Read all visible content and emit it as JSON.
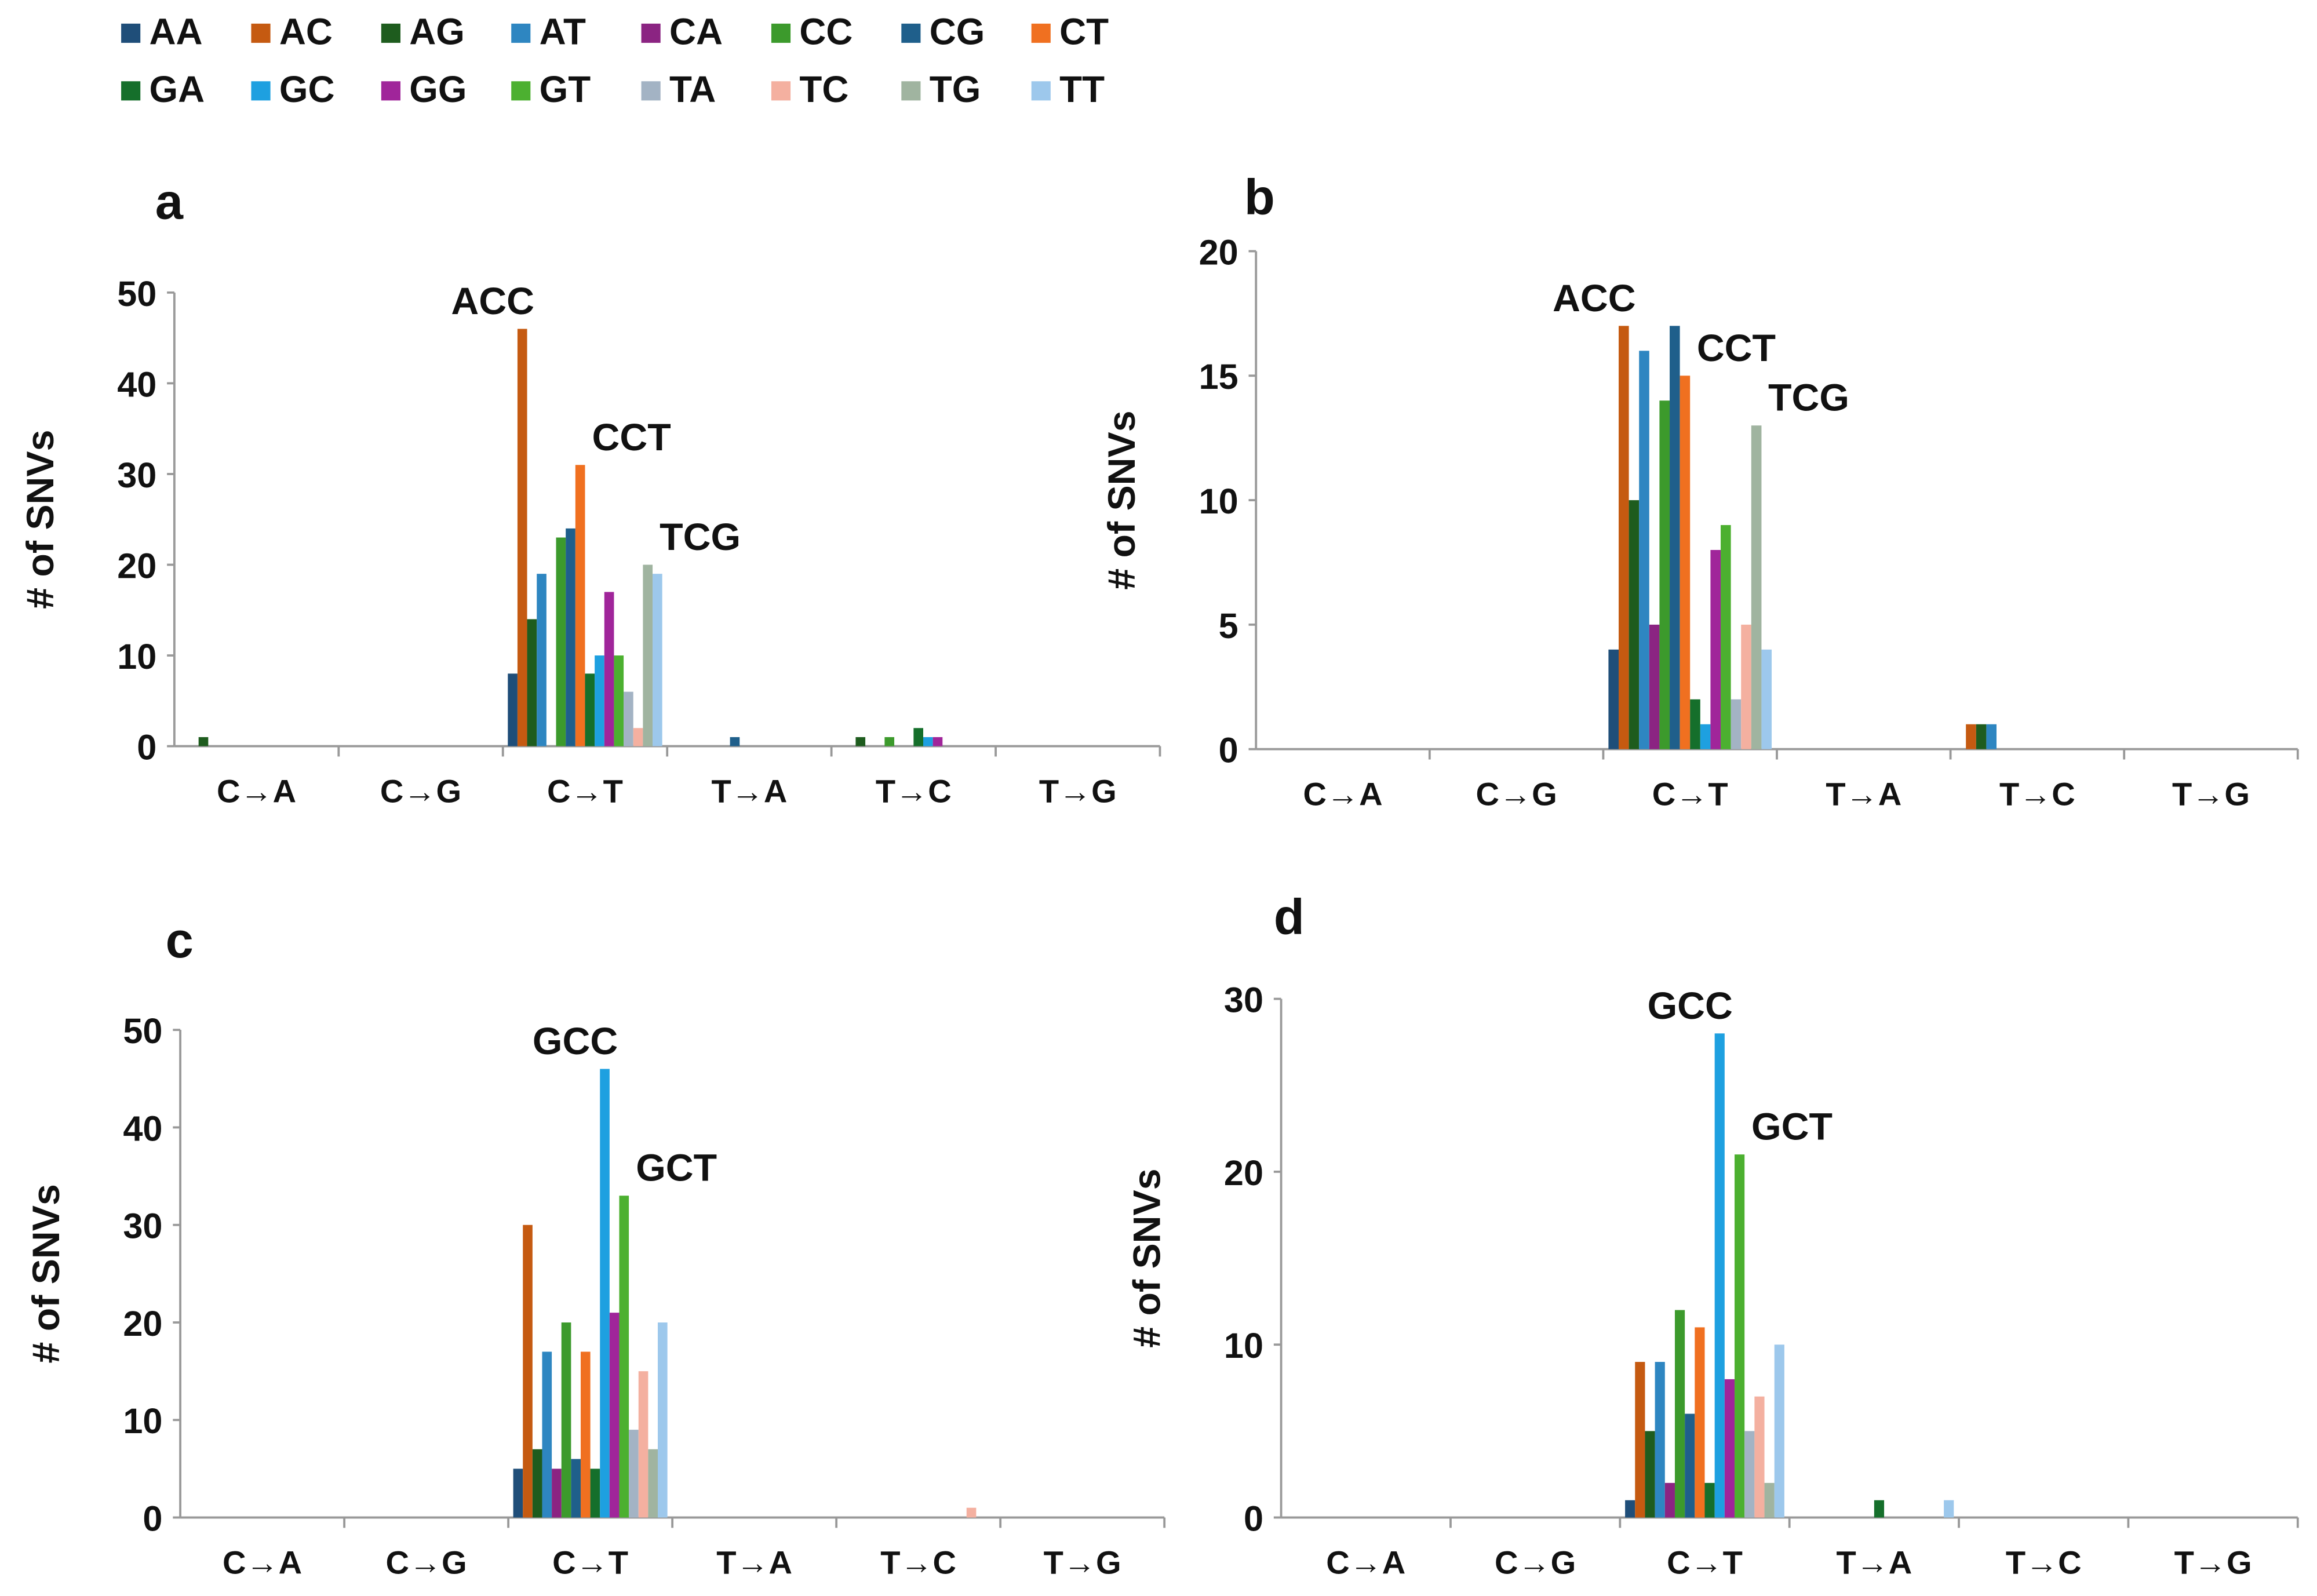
{
  "legend": [
    "AA",
    "AC",
    "AG",
    "AT",
    "CA",
    "CC",
    "CG",
    "CT",
    "GA",
    "GC",
    "GG",
    "GT",
    "TA",
    "TC",
    "TG",
    "TT"
  ],
  "colors": [
    "#1f4e79",
    "#c55a11",
    "#1e5c1e",
    "#2e86c1",
    "#8b2482",
    "#3c9a2c",
    "#1f5f8b",
    "#f07020",
    "#156f2b",
    "#1ea0e0",
    "#a0259a",
    "#4cb030",
    "#a3b3c4",
    "#f4b0a0",
    "#a0b4a0",
    "#9dc8ec"
  ],
  "chart_data": [
    {
      "type": "bar",
      "panel": "a",
      "ylabel": "# of SNVs",
      "ylim": [
        0,
        50
      ],
      "yticks": [
        0,
        10,
        20,
        30,
        40,
        50
      ],
      "categories": [
        "C→A",
        "C→G",
        "C→T",
        "T→A",
        "T→C",
        "T→G"
      ],
      "values": {
        "C→A": {
          "AG": 1
        },
        "C→G": {},
        "C→T": {
          "AA": 8,
          "AC": 46,
          "AG": 14,
          "AT": 19,
          "CA": 0,
          "CC": 23,
          "CG": 24,
          "CT": 31,
          "GA": 8,
          "GC": 10,
          "GG": 17,
          "GT": 10,
          "TA": 6,
          "TC": 2,
          "TG": 20,
          "TT": 19
        },
        "T→A": {
          "CG": 1
        },
        "T→C": {
          "AG": 1,
          "CC": 1,
          "GA": 2,
          "GC": 1,
          "GG": 1
        },
        "T→G": {}
      },
      "annotations": [
        {
          "text": "ACC",
          "category": "C→T",
          "series": "AC"
        },
        {
          "text": "CCT",
          "category": "C→T",
          "series": "CT"
        },
        {
          "text": "TCG",
          "category": "C→T",
          "series": "TG"
        }
      ]
    },
    {
      "type": "bar",
      "panel": "b",
      "ylabel": "# of SNVs",
      "ylim": [
        0,
        20
      ],
      "yticks": [
        0,
        5,
        10,
        15,
        20
      ],
      "categories": [
        "C→A",
        "C→G",
        "C→T",
        "T→A",
        "T→C",
        "T→G"
      ],
      "values": {
        "C→A": {},
        "C→G": {},
        "C→T": {
          "AA": 4,
          "AC": 17,
          "AG": 10,
          "AT": 16,
          "CA": 5,
          "CC": 14,
          "CG": 17,
          "CT": 15,
          "GA": 2,
          "GC": 1,
          "GG": 8,
          "GT": 9,
          "TA": 2,
          "TC": 5,
          "TG": 13,
          "TT": 4
        },
        "T→A": {},
        "T→C": {
          "AC": 1,
          "AG": 1,
          "AT": 1
        },
        "T→G": {}
      },
      "annotations": [
        {
          "text": "ACC",
          "category": "C→T",
          "series": "AC"
        },
        {
          "text": "CCT",
          "category": "C→T",
          "series": "CT"
        },
        {
          "text": "TCG",
          "category": "C→T",
          "series": "TG"
        }
      ]
    },
    {
      "type": "bar",
      "panel": "c",
      "ylabel": "# of SNVs",
      "ylim": [
        0,
        50
      ],
      "yticks": [
        0,
        10,
        20,
        30,
        40,
        50
      ],
      "categories": [
        "C→A",
        "C→G",
        "C→T",
        "T→A",
        "T→C",
        "T→G"
      ],
      "values": {
        "C→A": {},
        "C→G": {},
        "C→T": {
          "AA": 5,
          "AC": 30,
          "AG": 7,
          "AT": 17,
          "CA": 5,
          "CC": 20,
          "CG": 6,
          "CT": 17,
          "GA": 5,
          "GC": 46,
          "GG": 21,
          "GT": 33,
          "TA": 9,
          "TC": 15,
          "TG": 7,
          "TT": 20
        },
        "T→A": {},
        "T→C": {
          "TC": 1
        },
        "T→G": {}
      },
      "annotations": [
        {
          "text": "GCC",
          "category": "C→T",
          "series": "GC"
        },
        {
          "text": "GCT",
          "category": "C→T",
          "series": "GT"
        }
      ]
    },
    {
      "type": "bar",
      "panel": "d",
      "ylabel": "# of SNVs",
      "ylim": [
        0,
        30
      ],
      "yticks": [
        0,
        10,
        20,
        30
      ],
      "categories": [
        "C→A",
        "C→G",
        "C→T",
        "T→A",
        "T→C",
        "T→G"
      ],
      "values": {
        "C→A": {},
        "C→G": {},
        "C→T": {
          "AA": 1,
          "AC": 9,
          "AG": 5,
          "AT": 9,
          "CA": 2,
          "CC": 12,
          "CG": 6,
          "CT": 11,
          "GA": 2,
          "GC": 28,
          "GG": 8,
          "GT": 21,
          "TA": 5,
          "TC": 7,
          "TG": 2,
          "TT": 10
        },
        "T→A": {
          "GA": 1,
          "TT": 1
        },
        "T→C": {},
        "T→G": {}
      },
      "annotations": [
        {
          "text": "GCC",
          "category": "C→T",
          "series": "GC"
        },
        {
          "text": "GCT",
          "category": "C→T",
          "series": "GT"
        }
      ]
    }
  ]
}
